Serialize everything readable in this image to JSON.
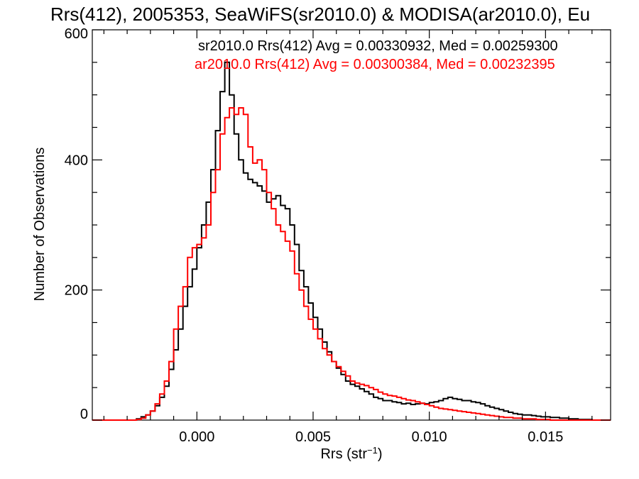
{
  "chart_data": {
    "type": "line",
    "title": "Rrs(412), 2005353, SeaWiFS(sr2010.0) & MODISA(ar2010.0), Eu",
    "xlabel_main": "Rrs (str",
    "xlabel_sup": "−1",
    "xlabel_end": ")",
    "ylabel": "Number of Observations",
    "xlim": [
      -0.0045,
      0.0178
    ],
    "ylim": [
      0,
      600
    ],
    "xticks": [
      {
        "value": 0.0,
        "label": "0.000"
      },
      {
        "value": 0.005,
        "label": "0.005"
      },
      {
        "value": 0.01,
        "label": "0.010"
      },
      {
        "value": 0.015,
        "label": "0.015"
      }
    ],
    "yticks": [
      {
        "value": 0,
        "label": "0"
      },
      {
        "value": 200,
        "label": "200"
      },
      {
        "value": 400,
        "label": "400"
      },
      {
        "value": 600,
        "label": "600"
      }
    ],
    "grid": false,
    "annotations": [
      {
        "text": "sr2010.0 Rrs(412) Avg = 0.00330932, Med = 0.00259300",
        "color": "#000000"
      },
      {
        "text": "ar2010.0 Rrs(412) Avg = 0.00300384, Med = 0.00232395",
        "color": "#ff0000"
      }
    ],
    "series": [
      {
        "color": "#000000",
        "points": [
          [
            -0.0045,
            0
          ],
          [
            -0.003,
            0
          ],
          [
            -0.0026,
            2
          ],
          [
            -0.0024,
            5
          ],
          [
            -0.0022,
            8
          ],
          [
            -0.002,
            14
          ],
          [
            -0.0018,
            22
          ],
          [
            -0.0016,
            35
          ],
          [
            -0.0014,
            52
          ],
          [
            -0.0012,
            78
          ],
          [
            -0.001,
            108
          ],
          [
            -0.0008,
            140
          ],
          [
            -0.0006,
            175
          ],
          [
            -0.0004,
            205
          ],
          [
            -0.0002,
            232
          ],
          [
            0.0,
            265
          ],
          [
            0.0002,
            300
          ],
          [
            0.0004,
            335
          ],
          [
            0.0006,
            385
          ],
          [
            0.0008,
            445
          ],
          [
            0.001,
            505
          ],
          [
            0.0012,
            550
          ],
          [
            0.0014,
            500
          ],
          [
            0.0016,
            440
          ],
          [
            0.0018,
            400
          ],
          [
            0.002,
            380
          ],
          [
            0.0022,
            370
          ],
          [
            0.0024,
            365
          ],
          [
            0.0026,
            360
          ],
          [
            0.0028,
            352
          ],
          [
            0.003,
            335
          ],
          [
            0.0032,
            340
          ],
          [
            0.0034,
            345
          ],
          [
            0.0036,
            330
          ],
          [
            0.0038,
            325
          ],
          [
            0.004,
            300
          ],
          [
            0.0042,
            270
          ],
          [
            0.0044,
            230
          ],
          [
            0.0046,
            205
          ],
          [
            0.0048,
            180
          ],
          [
            0.005,
            158
          ],
          [
            0.0052,
            140
          ],
          [
            0.0054,
            120
          ],
          [
            0.0056,
            105
          ],
          [
            0.0058,
            90
          ],
          [
            0.006,
            80
          ],
          [
            0.0062,
            70
          ],
          [
            0.0064,
            60
          ],
          [
            0.0066,
            55
          ],
          [
            0.0068,
            52
          ],
          [
            0.007,
            48
          ],
          [
            0.0072,
            44
          ],
          [
            0.0074,
            40
          ],
          [
            0.0076,
            35
          ],
          [
            0.0078,
            33
          ],
          [
            0.008,
            30
          ],
          [
            0.0082,
            30
          ],
          [
            0.0084,
            28
          ],
          [
            0.0086,
            27
          ],
          [
            0.0088,
            25
          ],
          [
            0.009,
            26
          ],
          [
            0.0092,
            24
          ],
          [
            0.0094,
            25
          ],
          [
            0.0096,
            26
          ],
          [
            0.0098,
            25
          ],
          [
            0.01,
            27
          ],
          [
            0.0102,
            28
          ],
          [
            0.0104,
            30
          ],
          [
            0.0106,
            33
          ],
          [
            0.0108,
            35
          ],
          [
            0.011,
            33
          ],
          [
            0.0112,
            32
          ],
          [
            0.0114,
            30
          ],
          [
            0.0116,
            30
          ],
          [
            0.0118,
            28
          ],
          [
            0.012,
            27
          ],
          [
            0.0122,
            25
          ],
          [
            0.0124,
            22
          ],
          [
            0.0126,
            20
          ],
          [
            0.0128,
            18
          ],
          [
            0.013,
            16
          ],
          [
            0.0132,
            14
          ],
          [
            0.0134,
            12
          ],
          [
            0.0136,
            10
          ],
          [
            0.0138,
            9
          ],
          [
            0.014,
            8
          ],
          [
            0.0142,
            8
          ],
          [
            0.0144,
            7
          ],
          [
            0.0146,
            6
          ],
          [
            0.0148,
            5
          ],
          [
            0.015,
            5
          ],
          [
            0.0152,
            4
          ],
          [
            0.0154,
            4
          ],
          [
            0.0156,
            3
          ],
          [
            0.0158,
            3
          ],
          [
            0.016,
            2
          ],
          [
            0.0162,
            2
          ],
          [
            0.0164,
            1
          ],
          [
            0.0166,
            1
          ],
          [
            0.0168,
            1
          ],
          [
            0.017,
            0
          ],
          [
            0.0178,
            0
          ]
        ]
      },
      {
        "color": "#ff0000",
        "points": [
          [
            -0.0045,
            0
          ],
          [
            -0.003,
            0
          ],
          [
            -0.0026,
            1
          ],
          [
            -0.0024,
            3
          ],
          [
            -0.0022,
            8
          ],
          [
            -0.002,
            14
          ],
          [
            -0.0018,
            25
          ],
          [
            -0.0016,
            40
          ],
          [
            -0.0014,
            60
          ],
          [
            -0.0012,
            90
          ],
          [
            -0.001,
            140
          ],
          [
            -0.0008,
            175
          ],
          [
            -0.0006,
            205
          ],
          [
            -0.0004,
            250
          ],
          [
            -0.0002,
            265
          ],
          [
            0.0,
            270
          ],
          [
            0.0002,
            280
          ],
          [
            0.0004,
            300
          ],
          [
            0.0006,
            350
          ],
          [
            0.0008,
            385
          ],
          [
            0.001,
            440
          ],
          [
            0.0012,
            465
          ],
          [
            0.0014,
            480
          ],
          [
            0.0016,
            470
          ],
          [
            0.0018,
            480
          ],
          [
            0.002,
            470
          ],
          [
            0.0022,
            420
          ],
          [
            0.0024,
            395
          ],
          [
            0.0026,
            400
          ],
          [
            0.0028,
            385
          ],
          [
            0.003,
            350
          ],
          [
            0.0032,
            325
          ],
          [
            0.0034,
            300
          ],
          [
            0.0036,
            290
          ],
          [
            0.0038,
            275
          ],
          [
            0.004,
            260
          ],
          [
            0.0042,
            225
          ],
          [
            0.0044,
            200
          ],
          [
            0.0046,
            175
          ],
          [
            0.0048,
            155
          ],
          [
            0.005,
            140
          ],
          [
            0.0052,
            125
          ],
          [
            0.0054,
            110
          ],
          [
            0.0056,
            100
          ],
          [
            0.0058,
            90
          ],
          [
            0.006,
            82
          ],
          [
            0.0062,
            75
          ],
          [
            0.0064,
            68
          ],
          [
            0.0066,
            60
          ],
          [
            0.0068,
            57
          ],
          [
            0.007,
            55
          ],
          [
            0.0072,
            53
          ],
          [
            0.0074,
            50
          ],
          [
            0.0076,
            47
          ],
          [
            0.0078,
            43
          ],
          [
            0.008,
            40
          ],
          [
            0.0082,
            38
          ],
          [
            0.0084,
            37
          ],
          [
            0.0086,
            35
          ],
          [
            0.0088,
            33
          ],
          [
            0.009,
            31
          ],
          [
            0.0092,
            30
          ],
          [
            0.0094,
            28
          ],
          [
            0.0096,
            26
          ],
          [
            0.0098,
            24
          ],
          [
            0.01,
            22
          ],
          [
            0.0102,
            20
          ],
          [
            0.0104,
            18
          ],
          [
            0.0106,
            17
          ],
          [
            0.0108,
            16
          ],
          [
            0.011,
            15
          ],
          [
            0.0112,
            14
          ],
          [
            0.0114,
            13
          ],
          [
            0.0116,
            12
          ],
          [
            0.0118,
            11
          ],
          [
            0.012,
            10
          ],
          [
            0.0122,
            9
          ],
          [
            0.0124,
            8
          ],
          [
            0.0126,
            7
          ],
          [
            0.0128,
            6
          ],
          [
            0.013,
            5
          ],
          [
            0.0132,
            4
          ],
          [
            0.0134,
            4
          ],
          [
            0.0136,
            3
          ],
          [
            0.0138,
            3
          ],
          [
            0.014,
            2
          ],
          [
            0.0142,
            2
          ],
          [
            0.0144,
            2
          ],
          [
            0.0146,
            1
          ],
          [
            0.0148,
            1
          ],
          [
            0.015,
            1
          ],
          [
            0.0152,
            0
          ],
          [
            0.0178,
            0
          ]
        ]
      }
    ]
  }
}
